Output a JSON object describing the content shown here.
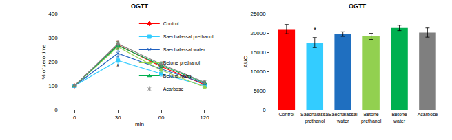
{
  "chart_data": [
    {
      "type": "line",
      "title": "OGTT",
      "x_label": "min",
      "y_label": "% of zero time",
      "categories": [
        "0",
        "30",
        "60",
        "120"
      ],
      "series": [
        {
          "name": "Control",
          "color": "#ff0000",
          "marker": "diamond",
          "values": [
            100,
            270,
            180,
            105
          ],
          "errors": [
            3,
            15,
            10,
            6
          ]
        },
        {
          "name": "Saechalassal prethanol",
          "color": "#33ccff",
          "marker": "square",
          "values": [
            100,
            205,
            150,
            100
          ],
          "errors": [
            3,
            18,
            10,
            5
          ]
        },
        {
          "name": "Saechalassal water",
          "color": "#1f5fbf",
          "marker": "x",
          "values": [
            100,
            235,
            170,
            110
          ],
          "errors": [
            3,
            15,
            8,
            5
          ]
        },
        {
          "name": "Betone prethanol",
          "color": "#92d050",
          "marker": "triangle-up",
          "values": [
            100,
            262,
            165,
            95
          ],
          "errors": [
            3,
            12,
            8,
            5
          ]
        },
        {
          "name": "Betone water",
          "color": "#00b050",
          "marker": "triangle-up",
          "values": [
            100,
            268,
            185,
            112
          ],
          "errors": [
            3,
            15,
            10,
            6
          ]
        },
        {
          "name": "Acarbose",
          "color": "#808080",
          "marker": "cross",
          "values": [
            100,
            275,
            190,
            115
          ],
          "errors": [
            3,
            15,
            10,
            6
          ]
        }
      ],
      "ylim": [
        0,
        400
      ],
      "yticks": [
        0,
        100,
        200,
        300,
        400
      ],
      "annotations": [
        {
          "text": "*",
          "category": "30",
          "y": 178
        }
      ],
      "legend": "top right"
    },
    {
      "type": "bar",
      "title": "OGTT",
      "y_label": "AUC",
      "categories": [
        "Control",
        "Saechalassal prethanol",
        "Saechalassal water",
        "Betone prethanol",
        "Betone water",
        "Acarbose"
      ],
      "values": [
        21000,
        17500,
        19700,
        19100,
        21300,
        20100
      ],
      "errors": [
        1200,
        1300,
        600,
        800,
        700,
        1200
      ],
      "colors": [
        "#ff0000",
        "#33ccff",
        "#1f6fc0",
        "#92d050",
        "#00b050",
        "#7f7f7f"
      ],
      "ylim": [
        0,
        25000
      ],
      "yticks": [
        0,
        5000,
        10000,
        15000,
        20000,
        25000
      ],
      "annotations": [
        {
          "text": "*",
          "category": "Saechalassal prethanol",
          "y": 19300
        }
      ]
    }
  ]
}
